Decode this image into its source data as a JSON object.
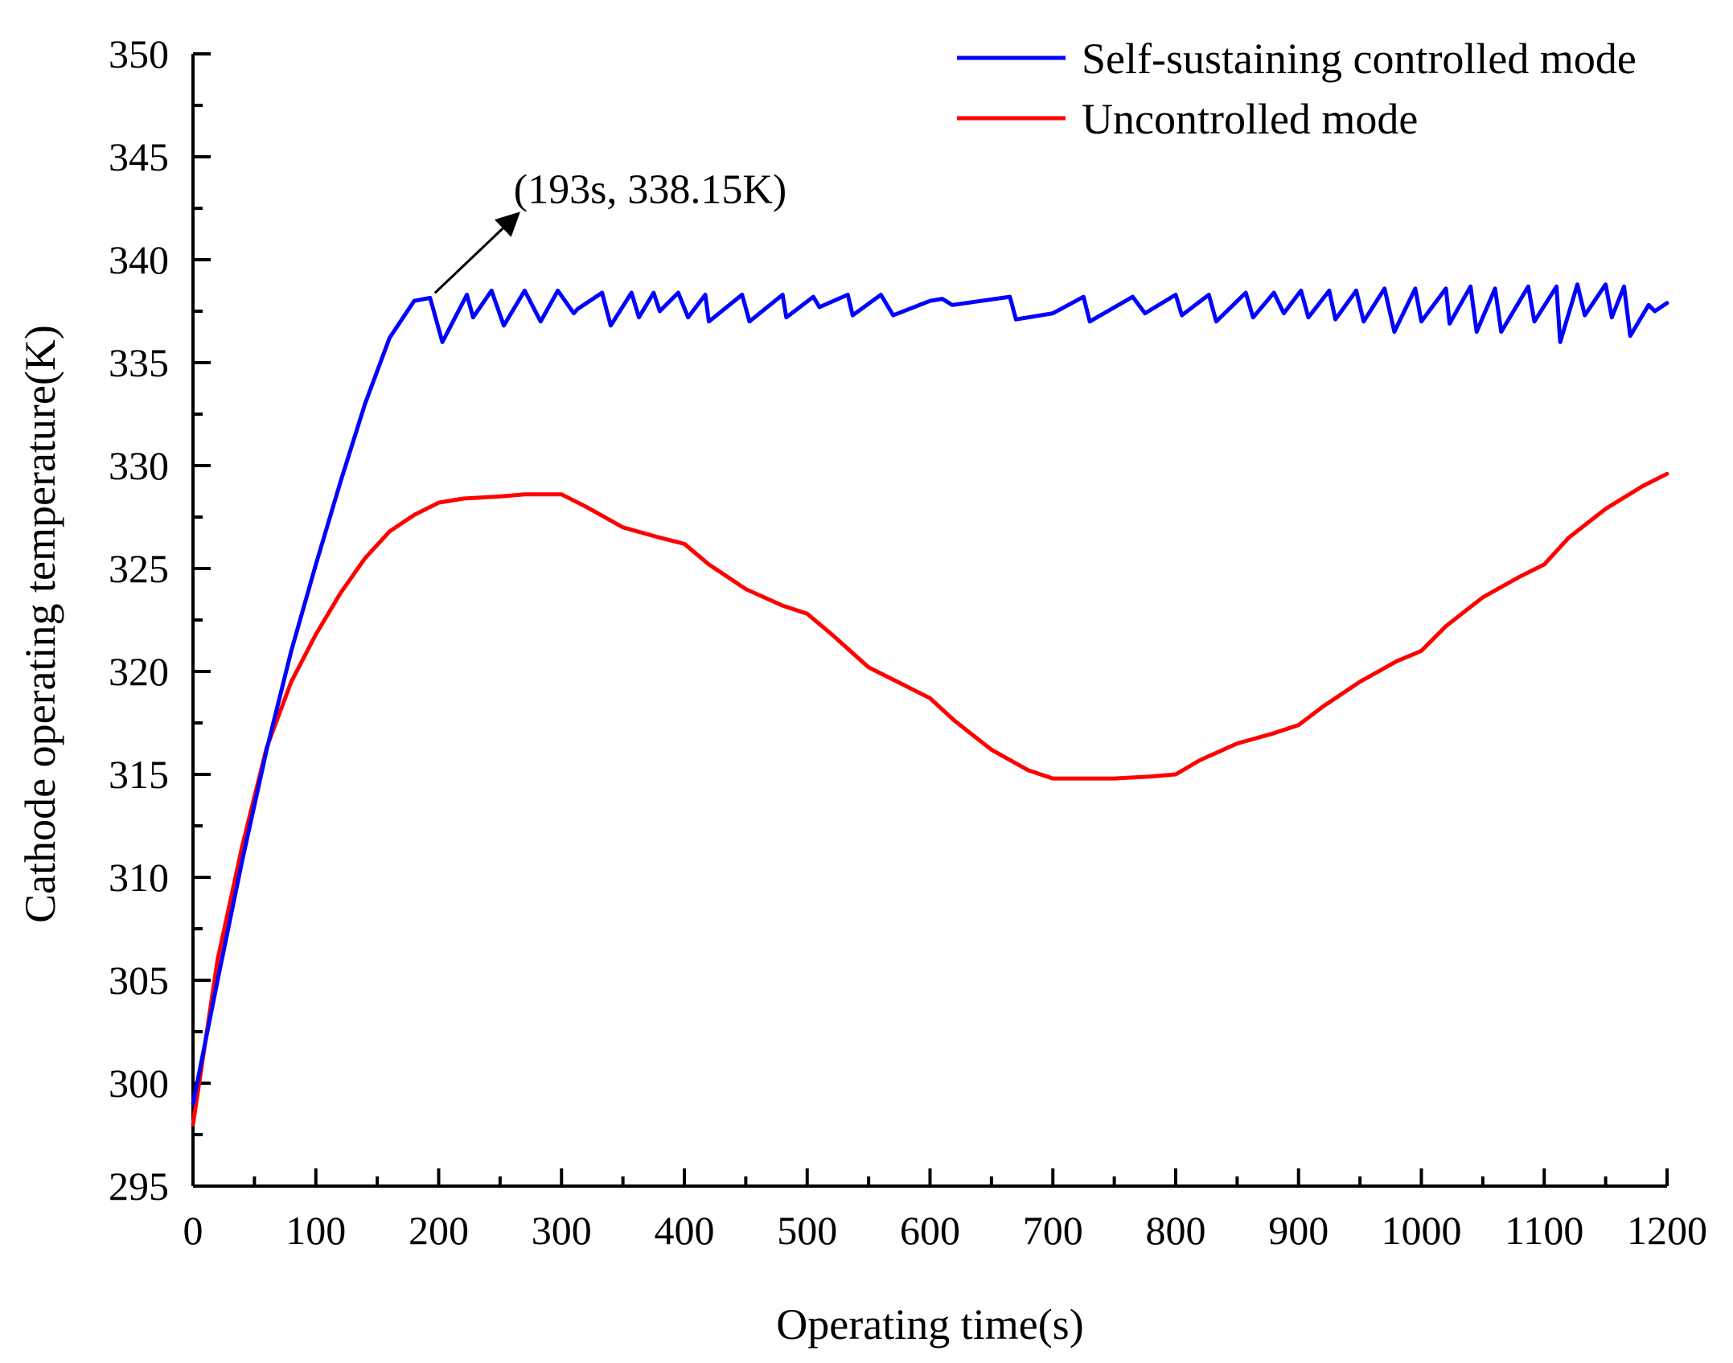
{
  "chart_data": {
    "type": "line",
    "title": "",
    "xlabel": "Operating time(s)",
    "ylabel": "Cathode operating temperature(K)",
    "xlim": [
      0,
      1200
    ],
    "ylim": [
      295,
      350
    ],
    "xticks": [
      0,
      100,
      200,
      300,
      400,
      500,
      600,
      700,
      800,
      900,
      1000,
      1100,
      1200
    ],
    "yticks": [
      295,
      300,
      305,
      310,
      315,
      320,
      325,
      330,
      335,
      340,
      345,
      350
    ],
    "grid": false,
    "legend_position": "top-right",
    "series": [
      {
        "name": "Self-sustaining controlled mode",
        "color": "#0000ff",
        "x": [
          0,
          20,
          40,
          60,
          80,
          100,
          120,
          140,
          160,
          180,
          193,
          203,
          223,
          228,
          243,
          253,
          270,
          283,
          297,
          310,
          313,
          333,
          340,
          357,
          363,
          375,
          380,
          395,
          403,
          417,
          420,
          447,
          453,
          480,
          483,
          505,
          510,
          533,
          537,
          560,
          570,
          600,
          610,
          618,
          665,
          670,
          700,
          725,
          730,
          765,
          775,
          800,
          805,
          827,
          833,
          857,
          863,
          880,
          888,
          902,
          908,
          925,
          930,
          947,
          953,
          970,
          978,
          995,
          1000,
          1020,
          1023,
          1040,
          1045,
          1060,
          1065,
          1087,
          1092,
          1110,
          1113,
          1127,
          1133,
          1150,
          1155,
          1165,
          1170,
          1185,
          1190,
          1200
        ],
        "values": [
          299.0,
          305.0,
          310.8,
          316.2,
          321.0,
          325.2,
          329.2,
          333.0,
          336.2,
          338.0,
          338.15,
          336.0,
          338.3,
          337.2,
          338.5,
          336.8,
          338.5,
          337.0,
          338.5,
          337.4,
          337.6,
          338.4,
          336.8,
          338.4,
          337.2,
          338.4,
          337.5,
          338.4,
          337.2,
          338.3,
          337.0,
          338.3,
          337.0,
          338.3,
          337.2,
          338.2,
          337.7,
          338.3,
          337.3,
          338.3,
          337.3,
          338.0,
          338.1,
          337.8,
          338.2,
          337.1,
          337.4,
          338.2,
          337.0,
          338.2,
          337.4,
          338.3,
          337.3,
          338.3,
          337.0,
          338.4,
          337.2,
          338.4,
          337.4,
          338.5,
          337.2,
          338.5,
          337.1,
          338.5,
          337.0,
          338.6,
          336.5,
          338.6,
          337.0,
          338.6,
          336.9,
          338.7,
          336.5,
          338.6,
          336.5,
          338.7,
          337.0,
          338.7,
          336.0,
          338.8,
          337.3,
          338.8,
          337.2,
          338.7,
          336.3,
          337.8,
          337.5,
          337.9
        ]
      },
      {
        "name": "Uncontrolled mode",
        "color": "#ff0000",
        "x": [
          0,
          20,
          40,
          60,
          80,
          100,
          120,
          140,
          160,
          180,
          200,
          220,
          250,
          270,
          300,
          320,
          350,
          380,
          400,
          420,
          450,
          480,
          500,
          520,
          550,
          580,
          600,
          620,
          650,
          680,
          700,
          720,
          750,
          780,
          800,
          820,
          850,
          880,
          900,
          920,
          950,
          980,
          1000,
          1020,
          1050,
          1080,
          1100,
          1120,
          1150,
          1180,
          1200
        ],
        "values": [
          298.0,
          306.0,
          311.5,
          316.3,
          319.5,
          321.8,
          323.8,
          325.5,
          326.8,
          327.6,
          328.2,
          328.4,
          328.5,
          328.6,
          328.6,
          328.0,
          327.0,
          326.5,
          326.2,
          325.2,
          324.0,
          323.2,
          322.8,
          321.8,
          320.2,
          319.3,
          318.7,
          317.6,
          316.2,
          315.2,
          314.8,
          314.8,
          314.8,
          314.9,
          315.0,
          315.7,
          316.5,
          317.0,
          317.4,
          318.3,
          319.5,
          320.5,
          321.0,
          322.2,
          323.6,
          324.6,
          325.2,
          326.5,
          327.9,
          329.0,
          329.6
        ]
      }
    ],
    "annotation": {
      "text": "(193s, 338.15K)",
      "x": 193,
      "y": 338.15
    }
  }
}
